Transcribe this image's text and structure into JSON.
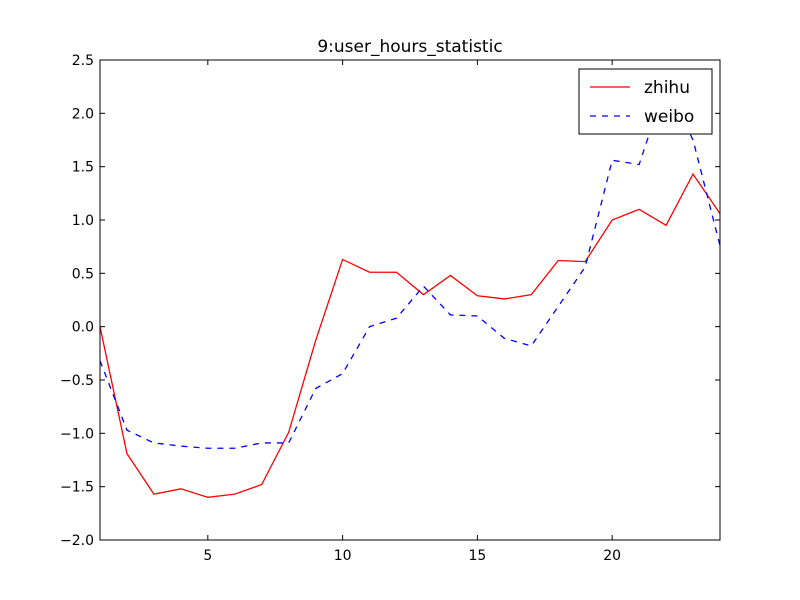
{
  "chart_data": {
    "type": "line",
    "title": "9:user_hours_statistic",
    "xlabel": "",
    "ylabel": "",
    "xlim": [
      1,
      24
    ],
    "ylim": [
      -2.0,
      2.5
    ],
    "xticks": [
      5,
      10,
      15,
      20
    ],
    "yticks": [
      -2.0,
      -1.5,
      -1.0,
      -0.5,
      0.0,
      0.5,
      1.0,
      1.5,
      2.0,
      2.5
    ],
    "xtick_labels": [
      "5",
      "10",
      "15",
      "20"
    ],
    "ytick_labels": [
      "−2.0",
      "−1.5",
      "−1.0",
      "−0.5",
      "0.0",
      "0.5",
      "1.0",
      "1.5",
      "2.0",
      "2.5"
    ],
    "grid": false,
    "legend_position": "top-right",
    "x": [
      1,
      2,
      3,
      4,
      5,
      6,
      7,
      8,
      9,
      10,
      11,
      12,
      13,
      14,
      15,
      16,
      17,
      18,
      19,
      20,
      21,
      22,
      23,
      24
    ],
    "series": [
      {
        "name": "zhihu",
        "color": "#ff0000",
        "style": "solid",
        "values": [
          0.0,
          -1.19,
          -1.57,
          -1.52,
          -1.6,
          -1.57,
          -1.48,
          -0.99,
          -0.13,
          0.63,
          0.51,
          0.51,
          0.3,
          0.48,
          0.29,
          0.26,
          0.3,
          0.62,
          0.61,
          1.0,
          1.1,
          0.95,
          1.43,
          1.06
        ]
      },
      {
        "name": "weibo",
        "color": "#0000ff",
        "style": "dashed",
        "values": [
          -0.32,
          -0.97,
          -1.09,
          -1.12,
          -1.14,
          -1.14,
          -1.09,
          -1.09,
          -0.58,
          -0.44,
          0.0,
          0.08,
          0.38,
          0.11,
          0.1,
          -0.11,
          -0.18,
          0.19,
          0.56,
          1.56,
          1.52,
          2.28,
          1.75,
          0.76
        ]
      }
    ]
  }
}
